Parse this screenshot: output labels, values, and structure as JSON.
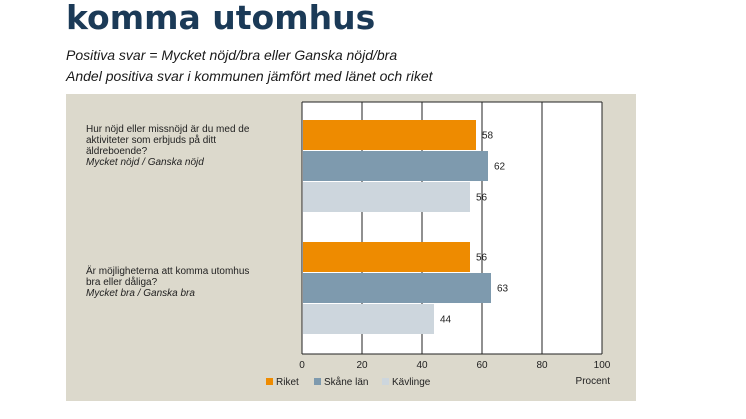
{
  "header": {
    "title_line1": "...omma utomhus...",
    "title_line2": "komma utomhus",
    "subtitle1": "Positiva svar = Mycket nöjd/bra eller Ganska nöjd/bra",
    "subtitle2": "Andel positiva svar i kommunen jämfört med länet och riket"
  },
  "colors": {
    "Riket": "#ee8b00",
    "Skåne län": "#7e9aae",
    "Kävlinge": "#cdd6dd",
    "panel": "#dcd9cc",
    "title": "#1b3a57"
  },
  "chart_data": {
    "type": "bar",
    "orientation": "horizontal",
    "categories": [
      {
        "lines": [
          "Hur nöjd eller missnöjd är du med de",
          "aktiviteter som erbjuds på ditt",
          "äldreboende?"
        ],
        "sub": "Mycket nöjd / Ganska nöjd"
      },
      {
        "lines": [
          "Är möjligheterna att komma utomhus",
          "bra eller dåliga?"
        ],
        "sub": "Mycket bra / Ganska bra"
      }
    ],
    "series": [
      {
        "name": "Riket",
        "values": [
          58,
          56
        ]
      },
      {
        "name": "Skåne län",
        "values": [
          62,
          63
        ]
      },
      {
        "name": "Kävlinge",
        "values": [
          56,
          44
        ]
      }
    ],
    "xlim": [
      0,
      100
    ],
    "xticks": [
      "0",
      "20",
      "40",
      "60",
      "80",
      "100"
    ],
    "xlabel": "Procent",
    "grid": true,
    "legend_position": "bottom"
  }
}
